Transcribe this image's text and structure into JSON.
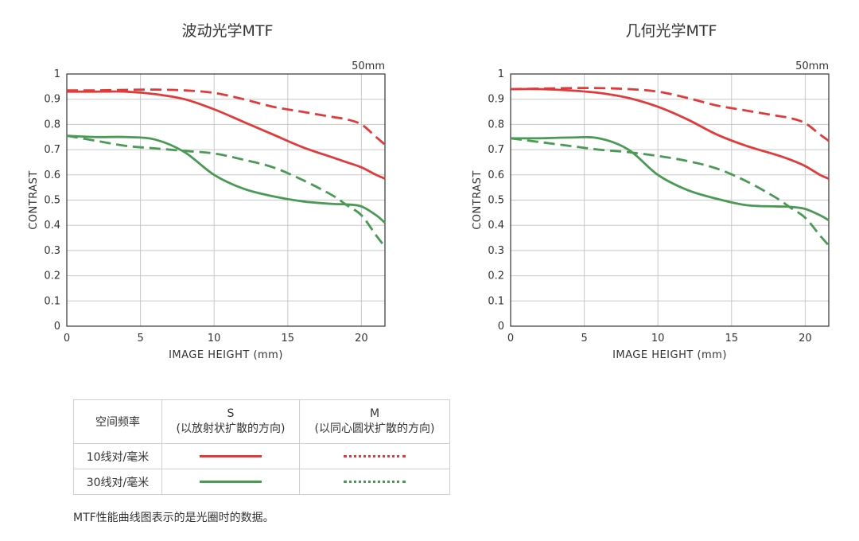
{
  "colors": {
    "red": "#e03a3a",
    "green": "#4a9a55",
    "grid": "#c8c8c8",
    "axis": "#333333"
  },
  "charts": [
    {
      "title": "波动光学MTF"
    },
    {
      "title": "几何光学MTF"
    }
  ],
  "chart_data": [
    {
      "type": "line",
      "title": "波动光学MTF",
      "annotation": "50mm",
      "xlabel": "IMAGE HEIGHT (mm)",
      "ylabel": "CONTRAST",
      "xlim": [
        0,
        21.6
      ],
      "ylim": [
        0,
        1
      ],
      "xticks": [
        "0",
        "5",
        "10",
        "15",
        "20"
      ],
      "yticks": [
        "0",
        "0.1",
        "0.2",
        "0.3",
        "0.4",
        "0.5",
        "0.6",
        "0.7",
        "0.8",
        "0.9",
        "1"
      ],
      "grid": true,
      "x": [
        0,
        2,
        4,
        6,
        8,
        10,
        12,
        14,
        16,
        18,
        19,
        20,
        21,
        21.6
      ],
      "series": [
        {
          "name": "10线对/毫米 S",
          "color": "red",
          "dash": false,
          "values": [
            0.93,
            0.93,
            0.93,
            0.92,
            0.9,
            0.86,
            0.81,
            0.76,
            0.71,
            0.67,
            0.65,
            0.63,
            0.6,
            0.585
          ]
        },
        {
          "name": "10线对/毫米 M",
          "color": "red",
          "dash": true,
          "values": [
            0.935,
            0.935,
            0.937,
            0.938,
            0.935,
            0.925,
            0.9,
            0.87,
            0.85,
            0.83,
            0.82,
            0.8,
            0.75,
            0.72
          ]
        },
        {
          "name": "30线对/毫米 S",
          "color": "green",
          "dash": false,
          "values": [
            0.755,
            0.75,
            0.75,
            0.74,
            0.69,
            0.6,
            0.545,
            0.515,
            0.495,
            0.485,
            0.483,
            0.475,
            0.44,
            0.41
          ]
        },
        {
          "name": "30线对/毫米 M",
          "color": "green",
          "dash": true,
          "values": [
            0.755,
            0.735,
            0.715,
            0.705,
            0.695,
            0.685,
            0.66,
            0.63,
            0.58,
            0.52,
            0.48,
            0.44,
            0.36,
            0.315
          ]
        }
      ]
    },
    {
      "type": "line",
      "title": "几何光学MTF",
      "annotation": "50mm",
      "xlabel": "IMAGE HEIGHT (mm)",
      "ylabel": "CONTRAST",
      "xlim": [
        0,
        21.6
      ],
      "ylim": [
        0,
        1
      ],
      "xticks": [
        "0",
        "5",
        "10",
        "15",
        "20"
      ],
      "yticks": [
        "0",
        "0.1",
        "0.2",
        "0.3",
        "0.4",
        "0.5",
        "0.6",
        "0.7",
        "0.8",
        "0.9",
        "1"
      ],
      "grid": true,
      "x": [
        0,
        2,
        4,
        6,
        8,
        10,
        12,
        14,
        16,
        18,
        19,
        20,
        21,
        21.6
      ],
      "series": [
        {
          "name": "10线对/毫米 S",
          "color": "red",
          "dash": false,
          "values": [
            0.94,
            0.94,
            0.935,
            0.925,
            0.905,
            0.87,
            0.82,
            0.76,
            0.715,
            0.68,
            0.66,
            0.635,
            0.6,
            0.585
          ]
        },
        {
          "name": "10线对/毫米 M",
          "color": "red",
          "dash": true,
          "values": [
            0.94,
            0.942,
            0.944,
            0.944,
            0.94,
            0.93,
            0.905,
            0.875,
            0.855,
            0.835,
            0.825,
            0.805,
            0.76,
            0.735
          ]
        },
        {
          "name": "30线对/毫米 S",
          "color": "green",
          "dash": false,
          "values": [
            0.745,
            0.745,
            0.748,
            0.745,
            0.7,
            0.6,
            0.54,
            0.505,
            0.48,
            0.475,
            0.473,
            0.465,
            0.44,
            0.42
          ]
        },
        {
          "name": "30线对/毫米 M",
          "color": "green",
          "dash": true,
          "values": [
            0.745,
            0.73,
            0.715,
            0.7,
            0.69,
            0.675,
            0.655,
            0.625,
            0.575,
            0.51,
            0.47,
            0.43,
            0.36,
            0.32
          ]
        }
      ]
    }
  ],
  "legend_table": {
    "header": {
      "col1": "空间频率",
      "s_title": "S",
      "s_sub": "(以放射状扩散的方向)",
      "m_title": "M",
      "m_sub": "(以同心圆状扩散的方向)"
    },
    "rows": [
      {
        "label": "10线对/毫米",
        "color": "red"
      },
      {
        "label": "30线对/毫米",
        "color": "green"
      }
    ]
  },
  "footnote": "MTF性能曲线图表示的是光圈时的数据。"
}
